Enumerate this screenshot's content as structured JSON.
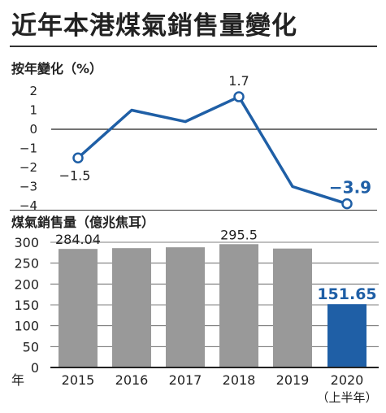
{
  "title": "近年本港煤氣銷售量變化",
  "colors": {
    "accent": "#1f5fa6",
    "bar": "#999999",
    "text": "#222222"
  },
  "chart_data": [
    {
      "type": "line",
      "ylabel": "按年變化（%）",
      "categories": [
        "2015",
        "2016",
        "2017",
        "2018",
        "2019",
        "2020\n（上半年）"
      ],
      "values": [
        -1.5,
        1.0,
        0.4,
        1.7,
        -3.0,
        -3.9
      ],
      "data_labels": [
        "−1.5",
        "",
        "",
        "1.7",
        "",
        "−3.9"
      ],
      "y_ticks": [
        "2",
        "1",
        "0",
        "−1",
        "−2",
        "−3",
        "−4"
      ],
      "ylim": [
        -4.5,
        2.5
      ],
      "grid": false
    },
    {
      "type": "bar",
      "ylabel": "煤氣銷售量（億兆焦耳）",
      "xlabel": "年",
      "categories": [
        "2015",
        "2016",
        "2017",
        "2018",
        "2019",
        "2020"
      ],
      "category_notes": [
        "",
        "",
        "",
        "",
        "",
        "（上半年）"
      ],
      "values": [
        284.04,
        286,
        288,
        295.5,
        285,
        151.65
      ],
      "data_labels": [
        "284.04",
        "",
        "",
        "295.5",
        "",
        "151.65"
      ],
      "y_ticks": [
        "300",
        "250",
        "200",
        "150",
        "100",
        "50",
        "0"
      ],
      "ylim": [
        0,
        300
      ],
      "grid": true
    }
  ]
}
